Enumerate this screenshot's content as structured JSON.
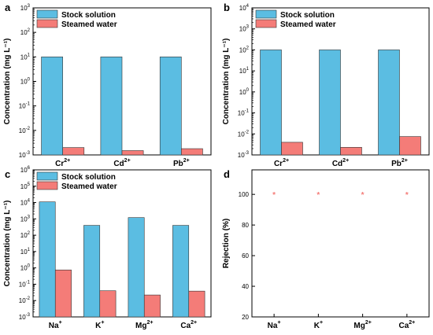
{
  "chart_data": [
    {
      "panel": "a",
      "type": "bar",
      "y_scale": "log",
      "ylabel": "Concentration (mg L⁻¹)",
      "yticks": [
        {
          "value": 0.001,
          "base": "10",
          "exp": "-3"
        },
        {
          "value": 0.01,
          "base": "10",
          "exp": "-2"
        },
        {
          "value": 0.1,
          "base": "10",
          "exp": "-1"
        },
        {
          "value": 1,
          "base": "10",
          "exp": "0"
        },
        {
          "value": 10,
          "base": "10",
          "exp": "1"
        },
        {
          "value": 100,
          "base": "10",
          "exp": "2"
        },
        {
          "value": 1000,
          "base": "10",
          "exp": "3"
        }
      ],
      "ylim": [
        0.001,
        1000
      ],
      "categories": [
        {
          "base": "Cr",
          "sup": "2+"
        },
        {
          "base": "Cd",
          "sup": "2+"
        },
        {
          "base": "Pb",
          "sup": "2+"
        }
      ],
      "series": [
        {
          "name": "Stock solution",
          "color": "#5bbde2",
          "values": [
            10,
            10,
            10
          ]
        },
        {
          "name": "Steamed water",
          "color": "#f47c78",
          "values": [
            0.002,
            0.0015,
            0.0018
          ]
        }
      ],
      "legend": "top-left"
    },
    {
      "panel": "b",
      "type": "bar",
      "y_scale": "log",
      "ylabel": "Concentration (mg L⁻¹)",
      "yticks": [
        {
          "value": 0.001,
          "base": "10",
          "exp": "-3"
        },
        {
          "value": 0.01,
          "base": "10",
          "exp": "-2"
        },
        {
          "value": 0.1,
          "base": "10",
          "exp": "-1"
        },
        {
          "value": 1,
          "base": "10",
          "exp": "0"
        },
        {
          "value": 10,
          "base": "10",
          "exp": "1"
        },
        {
          "value": 100,
          "base": "10",
          "exp": "2"
        },
        {
          "value": 1000,
          "base": "10",
          "exp": "3"
        },
        {
          "value": 10000,
          "base": "10",
          "exp": "4"
        }
      ],
      "ylim": [
        0.001,
        10000
      ],
      "categories": [
        {
          "base": "Cr",
          "sup": "2+"
        },
        {
          "base": "Cd",
          "sup": "2+"
        },
        {
          "base": "Pb",
          "sup": "2+"
        }
      ],
      "series": [
        {
          "name": "Stock solution",
          "color": "#5bbde2",
          "values": [
            100,
            100,
            100
          ]
        },
        {
          "name": "Steamed water",
          "color": "#f47c78",
          "values": [
            0.004,
            0.0023,
            0.0075
          ]
        }
      ],
      "legend": "top-left"
    },
    {
      "panel": "c",
      "type": "bar",
      "y_scale": "log",
      "ylabel": "Concentration (mg L⁻¹)",
      "yticks": [
        {
          "value": 0.001,
          "base": "10",
          "exp": "-3"
        },
        {
          "value": 0.01,
          "base": "10",
          "exp": "-2"
        },
        {
          "value": 0.1,
          "base": "10",
          "exp": "-1"
        },
        {
          "value": 1,
          "base": "10",
          "exp": "0"
        },
        {
          "value": 10,
          "base": "10",
          "exp": "1"
        },
        {
          "value": 100,
          "base": "10",
          "exp": "2"
        },
        {
          "value": 1000,
          "base": "10",
          "exp": "3"
        },
        {
          "value": 10000,
          "base": "10",
          "exp": "4"
        },
        {
          "value": 100000,
          "base": "10",
          "exp": "5"
        },
        {
          "value": 1000000,
          "base": "10",
          "exp": "6"
        }
      ],
      "ylim": [
        0.001,
        1000000
      ],
      "categories": [
        {
          "base": "Na",
          "sup": "+"
        },
        {
          "base": "K",
          "sup": "+"
        },
        {
          "base": "Mg",
          "sup": "2+"
        },
        {
          "base": "Ca",
          "sup": "2+"
        }
      ],
      "series": [
        {
          "name": "Stock solution",
          "color": "#5bbde2",
          "values": [
            11000,
            400,
            1200,
            400
          ]
        },
        {
          "name": "Steamed water",
          "color": "#f47c78",
          "values": [
            0.75,
            0.04,
            0.022,
            0.038
          ]
        }
      ],
      "legend": "top-left"
    },
    {
      "panel": "d",
      "type": "scatter",
      "y_scale": "linear",
      "ylabel": "Rejection (%)",
      "yticks": [
        {
          "value": 20,
          "label": "20"
        },
        {
          "value": 40,
          "label": "40"
        },
        {
          "value": 60,
          "label": "60"
        },
        {
          "value": 80,
          "label": "80"
        },
        {
          "value": 100,
          "label": "100"
        }
      ],
      "ylim": [
        20,
        116
      ],
      "categories": [
        {
          "base": "Na",
          "sup": "+"
        },
        {
          "base": "K",
          "sup": "+"
        },
        {
          "base": "Mg",
          "sup": "2+"
        },
        {
          "base": "Ca",
          "sup": "2+"
        }
      ],
      "series": [
        {
          "marker": "*",
          "color": "#f47c78",
          "values": [
            100,
            100,
            100,
            100
          ]
        }
      ]
    }
  ]
}
